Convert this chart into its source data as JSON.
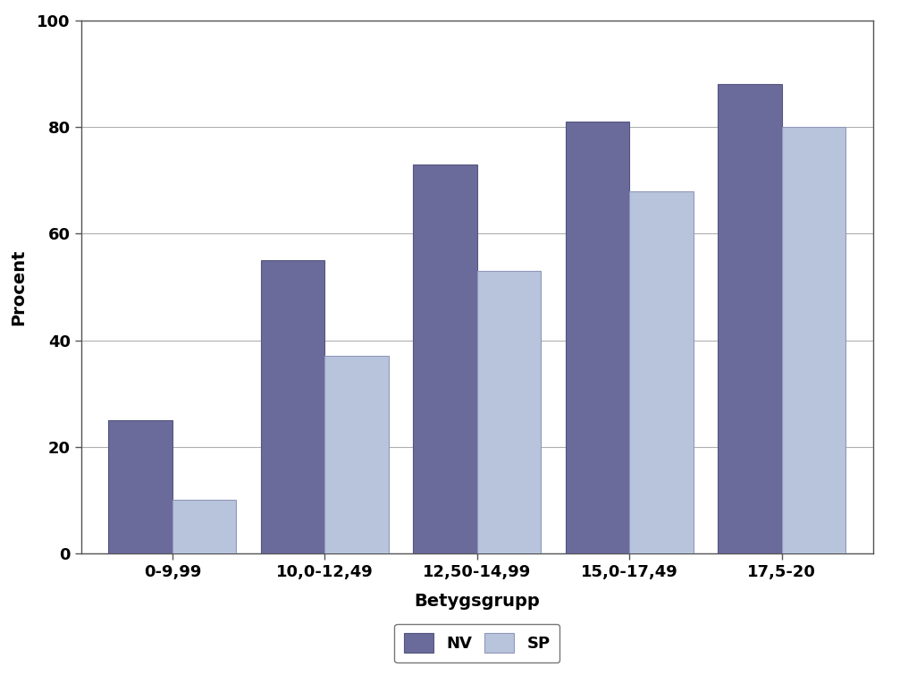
{
  "categories": [
    "0-9,99",
    "10,0-12,49",
    "12,50-14,99",
    "15,0-17,49",
    "17,5-20"
  ],
  "nv_values": [
    25,
    55,
    73,
    81,
    88
  ],
  "sp_values": [
    10,
    37,
    53,
    68,
    80
  ],
  "nv_color": "#6B6B9B",
  "sp_color": "#B8C4DC",
  "xlabel": "Betygsgrupp",
  "ylabel": "Procent",
  "ylim": [
    0,
    100
  ],
  "yticks": [
    0,
    20,
    40,
    60,
    80,
    100
  ],
  "legend_labels": [
    "NV",
    "SP"
  ],
  "background_color": "#ffffff",
  "bar_width": 0.42,
  "label_fontsize": 14,
  "tick_fontsize": 13,
  "legend_fontsize": 13,
  "nv_edge_color": "#555580",
  "sp_edge_color": "#9098BB",
  "grid_color": "#b0b0b0",
  "spine_color": "#555555"
}
